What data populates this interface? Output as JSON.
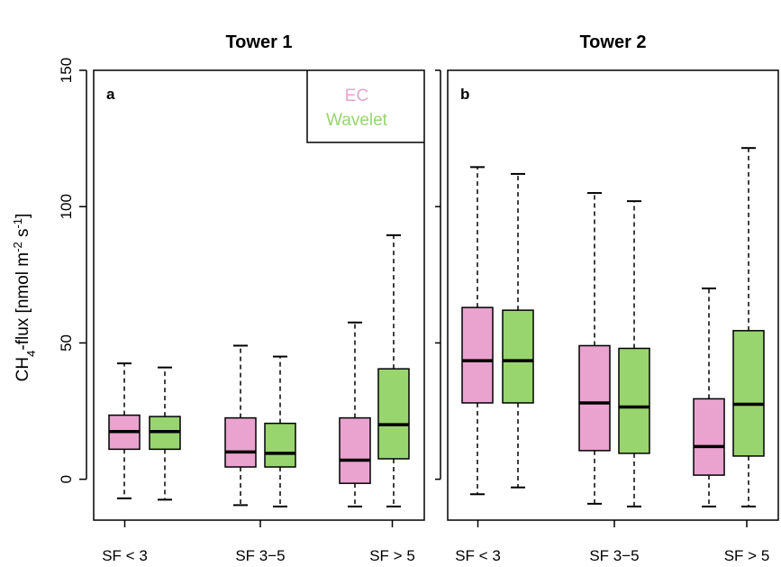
{
  "chart_data": {
    "type": "box",
    "ylabel_parts": {
      "pre": "CH",
      "sub4": "4",
      "mid": "-flux [nmol m",
      "sup1": "-2",
      "mid2": " s",
      "sup2": "-1",
      "end": "]"
    },
    "ylim": [
      -15,
      150
    ],
    "yticks": [
      0,
      50,
      100,
      150
    ],
    "grid": false,
    "legend": {
      "position": "top-right of panel a",
      "entries": [
        {
          "name": "EC",
          "color": "#e9a3ce"
        },
        {
          "name": "Wavelet",
          "color": "#98d56e"
        }
      ]
    },
    "colors": {
      "EC": "#e9a3ce",
      "Wavelet": "#98d56e"
    },
    "categories": [
      "SF < 3",
      "SF 3−5",
      "SF > 5"
    ],
    "panels": [
      {
        "title": "Tower 1",
        "letter": "a",
        "groups": [
          {
            "category": "SF < 3",
            "EC": {
              "whisker_low": -7,
              "q1": 11,
              "median": 17.5,
              "q3": 23.5,
              "whisker_high": 42.5
            },
            "Wavelet": {
              "whisker_low": -7.5,
              "q1": 11,
              "median": 17.5,
              "q3": 23,
              "whisker_high": 41
            }
          },
          {
            "category": "SF 3−5",
            "EC": {
              "whisker_low": -9.5,
              "q1": 4.5,
              "median": 10,
              "q3": 22.5,
              "whisker_high": 49
            },
            "Wavelet": {
              "whisker_low": -10,
              "q1": 4.5,
              "median": 9.5,
              "q3": 20.5,
              "whisker_high": 45
            }
          },
          {
            "category": "SF > 5",
            "EC": {
              "whisker_low": -10,
              "q1": -1.5,
              "median": 7,
              "q3": 22.5,
              "whisker_high": 57.5
            },
            "Wavelet": {
              "whisker_low": -10,
              "q1": 7.5,
              "median": 20,
              "q3": 40.5,
              "whisker_high": 89.5
            }
          }
        ]
      },
      {
        "title": "Tower 2",
        "letter": "b",
        "groups": [
          {
            "category": "SF < 3",
            "EC": {
              "whisker_low": -5.5,
              "q1": 28,
              "median": 43.5,
              "q3": 63,
              "whisker_high": 114.5
            },
            "Wavelet": {
              "whisker_low": -3,
              "q1": 28,
              "median": 43.5,
              "q3": 62,
              "whisker_high": 112
            }
          },
          {
            "category": "SF 3−5",
            "EC": {
              "whisker_low": -9,
              "q1": 10.5,
              "median": 28,
              "q3": 49,
              "whisker_high": 105
            },
            "Wavelet": {
              "whisker_low": -10,
              "q1": 9.5,
              "median": 26.5,
              "q3": 48,
              "whisker_high": 102
            }
          },
          {
            "category": "SF > 5",
            "EC": {
              "whisker_low": -10,
              "q1": 1.5,
              "median": 12,
              "q3": 29.5,
              "whisker_high": 70
            },
            "Wavelet": {
              "whisker_low": -10,
              "q1": 8.5,
              "median": 27.5,
              "q3": 54.5,
              "whisker_high": 121.5
            }
          }
        ]
      }
    ]
  }
}
